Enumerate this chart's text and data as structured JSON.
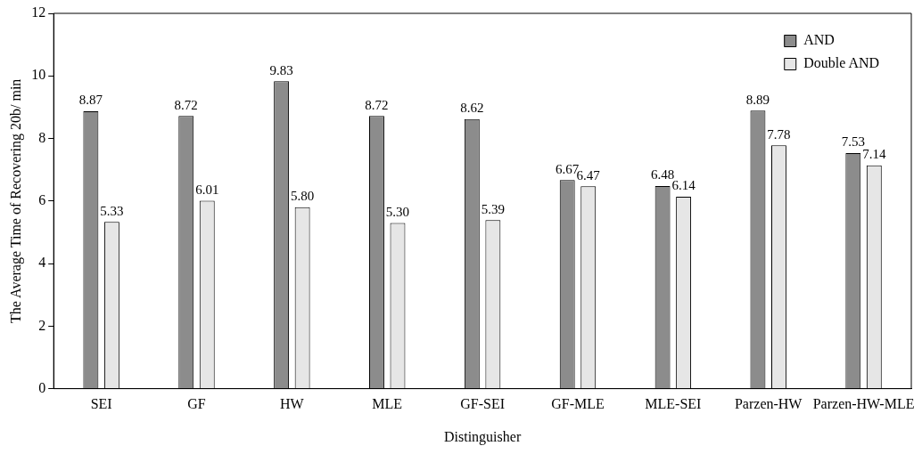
{
  "chart_data": {
    "type": "bar",
    "xlabel": "Distinguisher",
    "ylabel": "The Average Time of Recovering 20b/ min",
    "categories": [
      "SEI",
      "GF",
      "HW",
      "MLE",
      "GF-SEI",
      "GF-MLE",
      "MLE-SEI",
      "Parzen-HW",
      "Parzen-HW-MLE"
    ],
    "series": [
      {
        "name": "AND",
        "color": "#8c8c8c",
        "values": [
          8.87,
          8.72,
          9.83,
          8.72,
          8.62,
          6.67,
          6.48,
          8.89,
          7.53
        ],
        "value_labels": [
          "8.87",
          "8.72",
          "9.83",
          "8.72",
          "8.62",
          "6.67",
          "6.48",
          "8.89",
          "7.53"
        ]
      },
      {
        "name": "Double AND",
        "color": "#e6e6e6",
        "values": [
          5.33,
          6.01,
          5.8,
          5.3,
          5.39,
          6.47,
          6.14,
          7.78,
          7.14
        ],
        "value_labels": [
          "5.33",
          "6.01",
          "5.80",
          "5.30",
          "5.39",
          "6.47",
          "6.14",
          "7.78",
          "7.14"
        ]
      }
    ],
    "ylim": [
      0,
      12
    ],
    "yticks": [
      0,
      2,
      4,
      6,
      8,
      10,
      12
    ],
    "grid": false,
    "legend": "top right"
  }
}
